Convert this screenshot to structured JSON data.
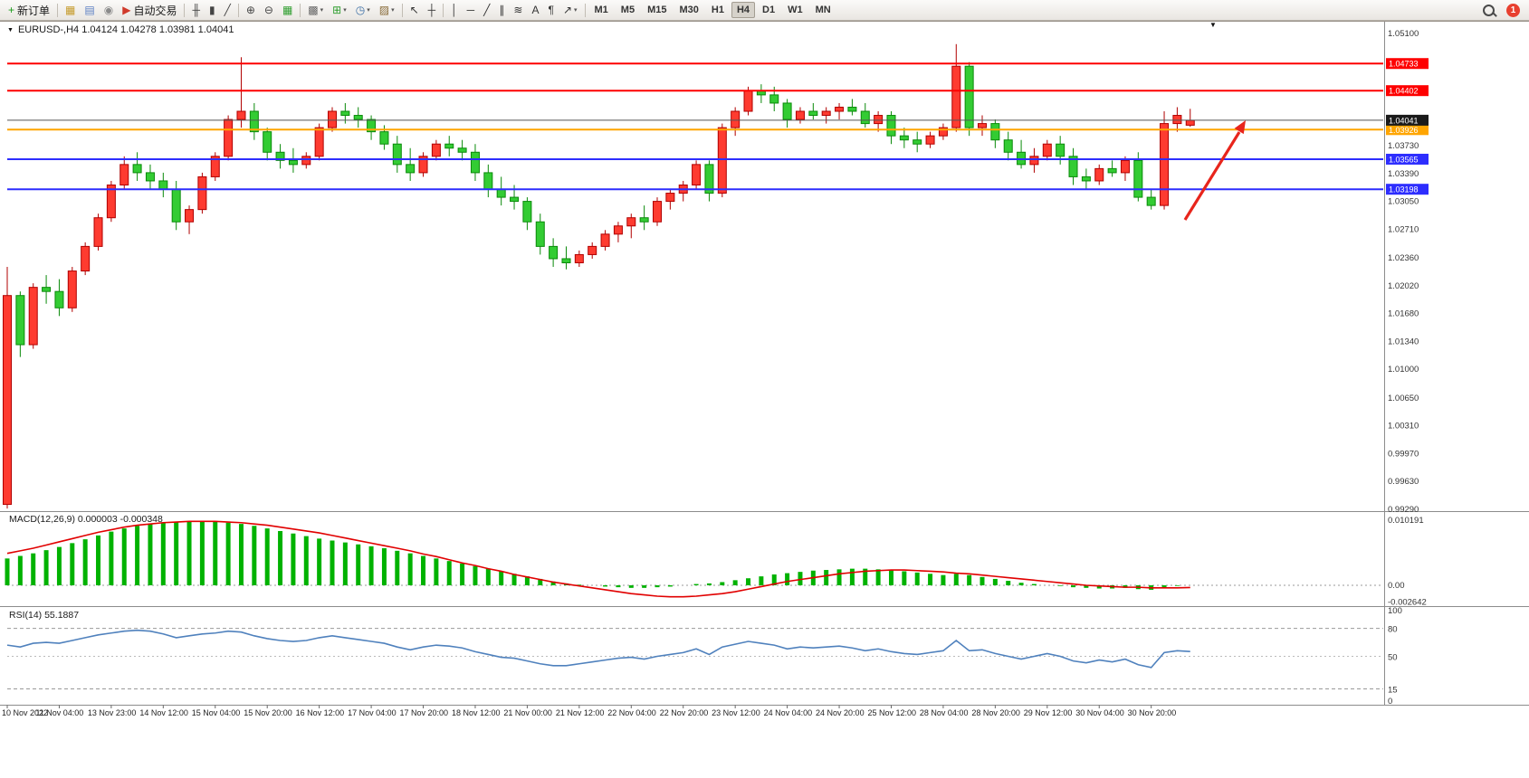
{
  "icons": {
    "collapse": "▼",
    "shift_marker": "▼",
    "caret": "▾"
  },
  "toolbar": {
    "items": [
      {
        "name": "new-order-button",
        "glyph": "+",
        "glyph_color": "#1a9c1a",
        "label": "新订单"
      },
      {
        "sep": true
      },
      {
        "name": "chart-window-button",
        "glyph": "▦",
        "glyph_color": "#c59a2a"
      },
      {
        "name": "profiles-button",
        "glyph": "▤",
        "glyph_color": "#5b7fc4"
      },
      {
        "name": "data-window-button",
        "glyph": "◉",
        "glyph_color": "#8a8a8a"
      },
      {
        "name": "autotrading-button",
        "glyph": "▶",
        "glyph_color": "#d03a2b",
        "label": "自动交易"
      },
      {
        "sep": true
      },
      {
        "name": "bar-chart-button",
        "glyph": "╫",
        "glyph_color": "#444444"
      },
      {
        "name": "candlestick-chart-button",
        "glyph": "▮",
        "glyph_color": "#444444"
      },
      {
        "name": "line-chart-button",
        "glyph": "╱",
        "glyph_color": "#444444"
      },
      {
        "sep": true
      },
      {
        "name": "zoom-in-button",
        "glyph": "⊕",
        "glyph_color": "#444444"
      },
      {
        "name": "zoom-out-button",
        "glyph": "⊖",
        "glyph_color": "#444444"
      },
      {
        "name": "tile-windows-button",
        "glyph": "▦",
        "glyph_color": "#2e9e2e"
      },
      {
        "sep": true
      },
      {
        "name": "new-chart-button",
        "glyph": "▩",
        "glyph_color": "#666666",
        "caret": true
      },
      {
        "name": "indicators-button",
        "glyph": "⊞",
        "glyph_color": "#2e9e2e",
        "caret": true
      },
      {
        "name": "periods-button",
        "glyph": "◷",
        "glyph_color": "#3a6ea5",
        "caret": true
      },
      {
        "name": "templates-button",
        "glyph": "▨",
        "glyph_color": "#8a6d3b",
        "caret": true
      },
      {
        "sep": true
      },
      {
        "name": "cursor-button",
        "glyph": "↖",
        "glyph_color": "#333333"
      },
      {
        "name": "crosshair-button",
        "glyph": "┼",
        "glyph_color": "#333333"
      },
      {
        "sep": true
      },
      {
        "name": "vertical-line-button",
        "glyph": "│",
        "glyph_color": "#333333"
      },
      {
        "name": "horizontal-line-button",
        "glyph": "─",
        "glyph_color": "#333333"
      },
      {
        "name": "trendline-button",
        "glyph": "╱",
        "glyph_color": "#333333"
      },
      {
        "name": "equidistant-channel-button",
        "glyph": "∥",
        "glyph_color": "#333333"
      },
      {
        "name": "fibonacci-button",
        "glyph": "≋",
        "glyph_color": "#333333"
      },
      {
        "name": "text-button",
        "glyph": "A",
        "glyph_color": "#333333"
      },
      {
        "name": "text-label-button",
        "glyph": "¶",
        "glyph_color": "#333333"
      },
      {
        "name": "arrows-button",
        "glyph": "↗",
        "glyph_color": "#333333",
        "caret": true
      },
      {
        "sep": true
      }
    ],
    "timeframes": [
      "M1",
      "M5",
      "M15",
      "M30",
      "H1",
      "H4",
      "D1",
      "W1",
      "MN"
    ],
    "active_timeframe": "H4",
    "notification_count": "1"
  },
  "chart": {
    "symbol_info": "EURUSD-,H4 1.04124 1.04278 1.03981 1.04041",
    "macd_label": "MACD(12,26,9) 0.000003 -0.000348",
    "rsi_label": "RSI(14) 55.1887"
  },
  "chart_data": {
    "type": "candlestick",
    "symbol": "EURUSD-",
    "timeframe": "H4",
    "ohlc": {
      "open": 1.04124,
      "high": 1.04278,
      "low": 1.03981,
      "close": 1.04041
    },
    "y_axis_range": [
      0.9929,
      1.051
    ],
    "colors": {
      "up": "#fe3b30",
      "up_border": "#b00000",
      "down": "#33cc33",
      "down_border": "#0a8a0a",
      "macd_hist": "#00b200",
      "macd_signal": "#e10000",
      "rsi_line": "#4f81bd",
      "bid_line": "#555555",
      "arrow": "#e8251c"
    },
    "candles": [
      [
        0.9935,
        1.0225,
        0.993,
        1.019
      ],
      [
        1.019,
        1.0195,
        1.0115,
        1.013
      ],
      [
        1.013,
        1.0205,
        1.0125,
        1.02
      ],
      [
        1.02,
        1.0215,
        1.018,
        1.0195
      ],
      [
        1.0195,
        1.021,
        1.0165,
        1.0175
      ],
      [
        1.0175,
        1.0225,
        1.017,
        1.022
      ],
      [
        1.022,
        1.0255,
        1.0215,
        1.025
      ],
      [
        1.025,
        1.029,
        1.0245,
        1.0285
      ],
      [
        1.0285,
        1.033,
        1.028,
        1.0325
      ],
      [
        1.0325,
        1.036,
        1.032,
        1.035
      ],
      [
        1.035,
        1.0365,
        1.033,
        1.034
      ],
      [
        1.034,
        1.035,
        1.032,
        1.033
      ],
      [
        1.033,
        1.034,
        1.031,
        1.032
      ],
      [
        1.032,
        1.033,
        1.027,
        1.028
      ],
      [
        1.028,
        1.03,
        1.0265,
        1.0295
      ],
      [
        1.0295,
        1.034,
        1.029,
        1.0335
      ],
      [
        1.0335,
        1.0365,
        1.033,
        1.036
      ],
      [
        1.036,
        1.041,
        1.0355,
        1.0405
      ],
      [
        1.0405,
        1.0481,
        1.0395,
        1.0415
      ],
      [
        1.0415,
        1.0425,
        1.038,
        1.039
      ],
      [
        1.039,
        1.0395,
        1.0355,
        1.0365
      ],
      [
        1.0365,
        1.0375,
        1.0345,
        1.0355
      ],
      [
        1.0355,
        1.037,
        1.034,
        1.035
      ],
      [
        1.035,
        1.0365,
        1.0345,
        1.036
      ],
      [
        1.036,
        1.04,
        1.0355,
        1.0395
      ],
      [
        1.0395,
        1.042,
        1.039,
        1.0415
      ],
      [
        1.0415,
        1.0425,
        1.04,
        1.041
      ],
      [
        1.041,
        1.042,
        1.0395,
        1.0405
      ],
      [
        1.0405,
        1.041,
        1.038,
        1.039
      ],
      [
        1.039,
        1.0398,
        1.0368,
        1.0375
      ],
      [
        1.0375,
        1.0385,
        1.034,
        1.035
      ],
      [
        1.035,
        1.037,
        1.033,
        1.034
      ],
      [
        1.034,
        1.0365,
        1.0335,
        1.036
      ],
      [
        1.036,
        1.038,
        1.0355,
        1.0375
      ],
      [
        1.0375,
        1.0385,
        1.036,
        1.037
      ],
      [
        1.037,
        1.038,
        1.0355,
        1.0365
      ],
      [
        1.0365,
        1.0375,
        1.033,
        1.034
      ],
      [
        1.034,
        1.035,
        1.031,
        1.032
      ],
      [
        1.032,
        1.0335,
        1.03,
        1.031
      ],
      [
        1.031,
        1.0325,
        1.0295,
        1.0305
      ],
      [
        1.0305,
        1.031,
        1.027,
        1.028
      ],
      [
        1.028,
        1.029,
        1.024,
        1.025
      ],
      [
        1.025,
        1.026,
        1.0225,
        1.0235
      ],
      [
        1.0235,
        1.025,
        1.0222,
        1.023
      ],
      [
        1.023,
        1.0245,
        1.0225,
        1.024
      ],
      [
        1.024,
        1.0255,
        1.0235,
        1.025
      ],
      [
        1.025,
        1.027,
        1.0245,
        1.0265
      ],
      [
        1.0265,
        1.028,
        1.0255,
        1.0275
      ],
      [
        1.0275,
        1.029,
        1.026,
        1.0285
      ],
      [
        1.0285,
        1.03,
        1.027,
        1.028
      ],
      [
        1.028,
        1.031,
        1.0275,
        1.0305
      ],
      [
        1.0305,
        1.032,
        1.0295,
        1.0315
      ],
      [
        1.0315,
        1.033,
        1.0305,
        1.0325
      ],
      [
        1.0325,
        1.0355,
        1.032,
        1.035
      ],
      [
        1.035,
        1.0355,
        1.0305,
        1.0315
      ],
      [
        1.0315,
        1.04,
        1.031,
        1.0395
      ],
      [
        1.0395,
        1.042,
        1.0385,
        1.0415
      ],
      [
        1.0415,
        1.0445,
        1.041,
        1.044
      ],
      [
        1.044,
        1.0448,
        1.0425,
        1.0435
      ],
      [
        1.0435,
        1.0445,
        1.0415,
        1.0425
      ],
      [
        1.0425,
        1.043,
        1.0395,
        1.0405
      ],
      [
        1.0405,
        1.042,
        1.04,
        1.0415
      ],
      [
        1.0415,
        1.0425,
        1.0405,
        1.041
      ],
      [
        1.041,
        1.042,
        1.04,
        1.0415
      ],
      [
        1.0415,
        1.0425,
        1.0405,
        1.042
      ],
      [
        1.042,
        1.043,
        1.041,
        1.0415
      ],
      [
        1.0415,
        1.0425,
        1.0395,
        1.04
      ],
      [
        1.04,
        1.0415,
        1.039,
        1.041
      ],
      [
        1.041,
        1.0415,
        1.0375,
        1.0385
      ],
      [
        1.0385,
        1.0395,
        1.037,
        1.038
      ],
      [
        1.038,
        1.039,
        1.0365,
        1.0375
      ],
      [
        1.0375,
        1.039,
        1.037,
        1.0385
      ],
      [
        1.0385,
        1.04,
        1.038,
        1.0395
      ],
      [
        1.0395,
        1.0497,
        1.039,
        1.047
      ],
      [
        1.047,
        1.0475,
        1.0385,
        1.0395
      ],
      [
        1.0395,
        1.041,
        1.0385,
        1.04
      ],
      [
        1.04,
        1.0405,
        1.037,
        1.038
      ],
      [
        1.038,
        1.039,
        1.0355,
        1.0365
      ],
      [
        1.0365,
        1.038,
        1.0345,
        1.035
      ],
      [
        1.035,
        1.037,
        1.034,
        1.036
      ],
      [
        1.036,
        1.038,
        1.0355,
        1.0375
      ],
      [
        1.0375,
        1.0385,
        1.035,
        1.036
      ],
      [
        1.036,
        1.037,
        1.0325,
        1.0335
      ],
      [
        1.0335,
        1.0345,
        1.032,
        1.033
      ],
      [
        1.033,
        1.035,
        1.0325,
        1.0345
      ],
      [
        1.0345,
        1.0355,
        1.0335,
        1.034
      ],
      [
        1.034,
        1.036,
        1.033,
        1.0355
      ],
      [
        1.0355,
        1.0365,
        1.0305,
        1.031
      ],
      [
        1.031,
        1.032,
        1.0295,
        1.03
      ],
      [
        1.03,
        1.0415,
        1.0295,
        1.04
      ],
      [
        1.04,
        1.042,
        1.039,
        1.041
      ],
      [
        1.0398,
        1.0418,
        1.0396,
        1.0404
      ]
    ],
    "levels": [
      {
        "price": 1.04733,
        "label": "1.04733",
        "color": "#fe0000"
      },
      {
        "price": 1.04402,
        "label": "1.04402",
        "color": "#fe0000"
      },
      {
        "price": 1.03926,
        "label": "1.03926",
        "color": "#ffa500"
      },
      {
        "price": 1.03565,
        "label": "1.03565",
        "color": "#2d2dfe"
      },
      {
        "price": 1.03198,
        "label": "1.03198",
        "color": "#2d2dfe"
      }
    ],
    "bid": {
      "price": 1.04041,
      "label": "1.04041"
    },
    "price_ticks": [
      {
        "v": 1.051,
        "t": "1.05100"
      },
      {
        "v": 1.0373,
        "t": "1.03730"
      },
      {
        "v": 1.0339,
        "t": "1.03390"
      },
      {
        "v": 1.0305,
        "t": "1.03050"
      },
      {
        "v": 1.0271,
        "t": "1.02710"
      },
      {
        "v": 1.0236,
        "t": "1.02360"
      },
      {
        "v": 1.0202,
        "t": "1.02020"
      },
      {
        "v": 1.0168,
        "t": "1.01680"
      },
      {
        "v": 1.0134,
        "t": "1.01340"
      },
      {
        "v": 1.01,
        "t": "1.01000"
      },
      {
        "v": 1.0065,
        "t": "1.00650"
      },
      {
        "v": 1.0031,
        "t": "1.00310"
      },
      {
        "v": 0.9997,
        "t": "0.99970"
      },
      {
        "v": 0.9963,
        "t": "0.99630"
      },
      {
        "v": 0.9929,
        "t": "0.99290"
      }
    ],
    "macd": {
      "params": [
        12,
        26,
        9
      ],
      "main_value": 3e-06,
      "signal_value": -0.000348,
      "histogram": [
        0.0042,
        0.0046,
        0.005,
        0.0055,
        0.006,
        0.0066,
        0.0072,
        0.0078,
        0.0084,
        0.0089,
        0.0093,
        0.0096,
        0.0098,
        0.0099,
        0.01,
        0.01,
        0.0099,
        0.0098,
        0.0096,
        0.0093,
        0.0089,
        0.0085,
        0.0081,
        0.0077,
        0.0073,
        0.007,
        0.0067,
        0.0064,
        0.0061,
        0.0058,
        0.0054,
        0.005,
        0.0046,
        0.0042,
        0.0038,
        0.0034,
        0.003,
        0.0026,
        0.0022,
        0.0018,
        0.0014,
        0.001,
        0.0006,
        0.0003,
        0.0001,
        0,
        -0.0002,
        -0.0003,
        -0.0004,
        -0.0004,
        -0.0003,
        -0.0002,
        0,
        0.0002,
        0.0003,
        0.0005,
        0.0008,
        0.0011,
        0.0014,
        0.0017,
        0.0019,
        0.0021,
        0.0023,
        0.0024,
        0.0025,
        0.0026,
        0.0026,
        0.0025,
        0.0024,
        0.0022,
        0.002,
        0.0018,
        0.0016,
        0.0018,
        0.0016,
        0.0013,
        0.001,
        0.0007,
        0.0004,
        0.0002,
        0,
        -0.0001,
        -0.0003,
        -0.0004,
        -0.0005,
        -0.0005,
        -0.0004,
        -0.0006,
        -0.0007,
        -0.0003,
        -0.0001,
        3e-06
      ],
      "signal": [
        0.005,
        0.0054,
        0.0058,
        0.0063,
        0.0068,
        0.0073,
        0.0078,
        0.0083,
        0.0087,
        0.0091,
        0.0094,
        0.0096,
        0.0098,
        0.0099,
        0.01,
        0.01,
        0.01,
        0.0099,
        0.0098,
        0.0096,
        0.0094,
        0.0091,
        0.0088,
        0.0085,
        0.0082,
        0.0078,
        0.0074,
        0.007,
        0.0066,
        0.0062,
        0.0058,
        0.0054,
        0.0049,
        0.0045,
        0.004,
        0.0035,
        0.0031,
        0.0026,
        0.0022,
        0.0017,
        0.0013,
        0.0009,
        0.0005,
        0.0002,
        -0.0001,
        -0.0004,
        -0.0007,
        -0.001,
        -0.0013,
        -0.0015,
        -0.0017,
        -0.0018,
        -0.0018,
        -0.0017,
        -0.0015,
        -0.0013,
        -0.001,
        -0.0006,
        -0.0002,
        0.0002,
        0.0006,
        0.0009,
        0.0012,
        0.0015,
        0.0018,
        0.002,
        0.0022,
        0.0023,
        0.0024,
        0.0024,
        0.0023,
        0.0022,
        0.0021,
        0.0019,
        0.0018,
        0.0016,
        0.0014,
        0.0012,
        0.001,
        0.0008,
        0.0006,
        0.0004,
        0.0002,
        0,
        -0.0001,
        -0.0002,
        -0.0003,
        -0.0003,
        -0.0004,
        -0.0004,
        -0.0004,
        -0.000348
      ],
      "scale": [
        {
          "v": 0.010191,
          "t": "0.010191"
        },
        {
          "v": 0,
          "t": "0.00"
        },
        {
          "v": -0.002642,
          "t": "-0.002642"
        }
      ]
    },
    "rsi": {
      "period": 14,
      "current": 55.1887,
      "values": [
        62,
        60,
        64,
        65,
        64,
        67,
        70,
        73,
        75,
        77,
        78,
        77,
        74,
        70,
        72,
        74,
        75,
        77,
        76,
        72,
        69,
        67,
        66,
        67,
        70,
        72,
        70,
        68,
        66,
        64,
        60,
        57,
        60,
        62,
        61,
        59,
        55,
        52,
        49,
        48,
        45,
        42,
        40,
        40,
        42,
        44,
        46,
        48,
        49,
        47,
        50,
        52,
        54,
        58,
        52,
        60,
        63,
        66,
        64,
        62,
        58,
        60,
        59,
        60,
        61,
        59,
        56,
        58,
        55,
        53,
        52,
        54,
        56,
        67,
        56,
        57,
        53,
        50,
        47,
        50,
        53,
        50,
        45,
        43,
        46,
        44,
        47,
        41,
        38,
        54,
        56,
        55.1887
      ],
      "levels": [
        80,
        50,
        15
      ],
      "scale": [
        {
          "v": 100,
          "t": "100"
        },
        {
          "v": 80,
          "t": "80"
        },
        {
          "v": 50,
          "t": "50"
        },
        {
          "v": 15,
          "t": "15"
        },
        {
          "v": 0,
          "t": "0"
        }
      ]
    },
    "time_labels": [
      "10 Nov 2022",
      "11 Nov 04:00",
      "13 Nov 23:00",
      "14 Nov 12:00",
      "15 Nov 04:00",
      "15 Nov 20:00",
      "16 Nov 12:00",
      "17 Nov 04:00",
      "17 Nov 20:00",
      "18 Nov 12:00",
      "21 Nov 00:00",
      "21 Nov 12:00",
      "22 Nov 04:00",
      "22 Nov 20:00",
      "23 Nov 12:00",
      "24 Nov 04:00",
      "24 Nov 20:00",
      "25 Nov 12:00",
      "28 Nov 04:00",
      "28 Nov 20:00",
      "29 Nov 12:00",
      "30 Nov 04:00",
      "30 Nov 20:00"
    ]
  }
}
